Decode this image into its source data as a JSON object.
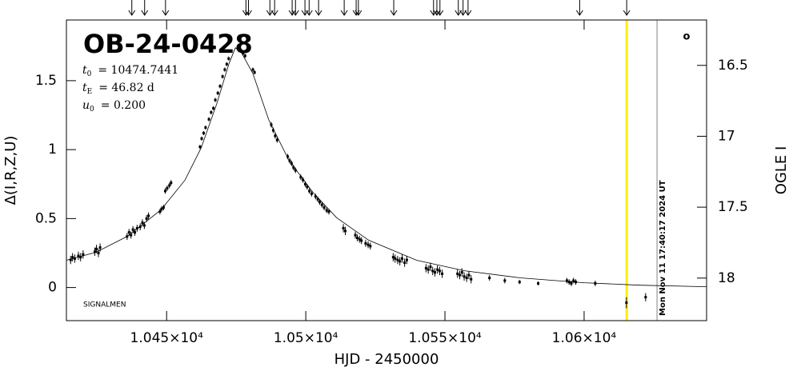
{
  "chart_data": {
    "type": "scatter",
    "title": "OB-24-0428",
    "parameters": [
      {
        "symbol": "t",
        "subscript": "0",
        "text": "= 10474.7441"
      },
      {
        "symbol": "t",
        "subscript": "E",
        "text": "= 46.82 d"
      },
      {
        "symbol": "u",
        "subscript": "0",
        "text": "= 0.200"
      }
    ],
    "annotation": "SIGNALMEN",
    "corner_mark": "o",
    "xlabel": "HJD - 2450000",
    "ylabel": "Δ(I,R,Z,U)",
    "y2label": "OGLE I",
    "xlim": [
      10414,
      10644
    ],
    "ylim": [
      -0.24,
      1.94
    ],
    "y2lim": [
      18.3,
      16.18
    ],
    "xticks": [
      {
        "value": 10450,
        "label": "1.045×10⁴"
      },
      {
        "value": 10500,
        "label": "1.05×10⁴"
      },
      {
        "value": 10550,
        "label": "1.055×10⁴"
      },
      {
        "value": 10600,
        "label": "1.06×10⁴"
      }
    ],
    "yticks": [
      0,
      0.5,
      1,
      1.5
    ],
    "y2ticks": [
      16.5,
      17,
      17.5,
      18
    ],
    "series": [
      {
        "color": "#000000",
        "x": [
          10415.5,
          10416.2,
          10417.0,
          10418.3,
          10419.1,
          10420.0,
          10424.2,
          10424.8,
          10425.5,
          10426.1,
          10435.8,
          10436.5,
          10437.2,
          10437.9,
          10438.6,
          10439.4,
          10440.5,
          10441.3,
          10442.0,
          10442.8,
          10443.5,
          10447.6,
          10448.2,
          10448.9,
          10449.5,
          10450.2,
          10451.0,
          10451.6,
          10462.0,
          10462.6,
          10463.3,
          10464.0,
          10465.2,
          10466.0,
          10466.8,
          10467.5,
          10468.4,
          10469.2,
          10470.1,
          10470.9,
          10471.6,
          10472.3,
          10476.0,
          10476.7,
          10477.5,
          10478.2,
          10481.0,
          10481.6,
          10487.6,
          10488.3,
          10489.0,
          10489.7,
          10493.5,
          10494.2,
          10494.9,
          10495.6,
          10496.3,
          10498.2,
          10499.0,
          10499.8,
          10500.5,
          10501.3,
          10502.1,
          10503.5,
          10504.3,
          10505.0,
          10505.8,
          10506.6,
          10507.5,
          10508.3,
          10513.5,
          10514.2,
          10517.8,
          10518.5,
          10519.3,
          10520.0,
          10521.5,
          10522.4,
          10523.2,
          10531.4,
          10532.1,
          10533.0,
          10533.8,
          10534.6,
          10535.5,
          10536.3,
          10543.2,
          10544.0,
          10544.8,
          10545.6,
          10546.4,
          10547.3,
          10548.1,
          10549.0,
          10554.5,
          10555.3,
          10556.1,
          10556.9,
          10557.8,
          10558.6,
          10559.4,
          10566.0,
          10571.5,
          10576.8,
          10583.5,
          10593.8,
          10594.6,
          10595.4,
          10596.2,
          10597.0,
          10604.0,
          10615.2,
          10622.1
        ],
        "values": [
          0.2,
          0.22,
          0.21,
          0.23,
          0.22,
          0.24,
          0.26,
          0.28,
          0.25,
          0.29,
          0.37,
          0.4,
          0.38,
          0.42,
          0.4,
          0.43,
          0.44,
          0.47,
          0.45,
          0.5,
          0.52,
          0.55,
          0.57,
          0.58,
          0.7,
          0.72,
          0.74,
          0.76,
          1.02,
          1.08,
          1.12,
          1.16,
          1.22,
          1.27,
          1.3,
          1.36,
          1.41,
          1.46,
          1.53,
          1.58,
          1.62,
          1.66,
          1.74,
          1.72,
          1.7,
          1.68,
          1.58,
          1.56,
          1.18,
          1.14,
          1.1,
          1.07,
          0.95,
          0.92,
          0.9,
          0.87,
          0.85,
          0.8,
          0.78,
          0.75,
          0.73,
          0.7,
          0.68,
          0.66,
          0.64,
          0.62,
          0.6,
          0.58,
          0.56,
          0.55,
          0.43,
          0.41,
          0.38,
          0.36,
          0.35,
          0.34,
          0.32,
          0.31,
          0.3,
          0.22,
          0.21,
          0.2,
          0.19,
          0.21,
          0.18,
          0.2,
          0.14,
          0.13,
          0.15,
          0.12,
          0.11,
          0.13,
          0.12,
          0.1,
          0.1,
          0.09,
          0.11,
          0.08,
          0.07,
          0.09,
          0.06,
          0.07,
          0.05,
          0.04,
          0.03,
          0.05,
          0.04,
          0.03,
          0.05,
          0.04,
          0.03,
          -0.11,
          -0.07
        ],
        "errors": [
          0.03,
          0.03,
          0.03,
          0.03,
          0.03,
          0.03,
          0.03,
          0.03,
          0.03,
          0.03,
          0.025,
          0.025,
          0.025,
          0.025,
          0.025,
          0.025,
          0.025,
          0.025,
          0.025,
          0.025,
          0.025,
          0.02,
          0.02,
          0.02,
          0.02,
          0.02,
          0.02,
          0.02,
          0.015,
          0.015,
          0.015,
          0.015,
          0.015,
          0.015,
          0.015,
          0.015,
          0.015,
          0.015,
          0.015,
          0.015,
          0.015,
          0.015,
          0.015,
          0.015,
          0.015,
          0.015,
          0.015,
          0.015,
          0.02,
          0.02,
          0.02,
          0.02,
          0.02,
          0.02,
          0.02,
          0.02,
          0.02,
          0.02,
          0.02,
          0.02,
          0.02,
          0.02,
          0.02,
          0.02,
          0.02,
          0.02,
          0.02,
          0.02,
          0.02,
          0.02,
          0.03,
          0.03,
          0.025,
          0.025,
          0.025,
          0.025,
          0.025,
          0.025,
          0.025,
          0.03,
          0.03,
          0.03,
          0.03,
          0.03,
          0.03,
          0.03,
          0.03,
          0.03,
          0.03,
          0.03,
          0.03,
          0.03,
          0.03,
          0.03,
          0.03,
          0.03,
          0.03,
          0.03,
          0.03,
          0.03,
          0.03,
          0.02,
          0.02,
          0.015,
          0.015,
          0.02,
          0.02,
          0.02,
          0.02,
          0.02,
          0.02,
          0.04,
          0.03
        ]
      }
    ],
    "model": {
      "type": "line",
      "color": "#000000",
      "x": [
        10414,
        10424.6,
        10436,
        10448,
        10456.6,
        10462.4,
        10468,
        10472.4,
        10474.7,
        10476.7,
        10481,
        10486.7,
        10493.9,
        10502.5,
        10511.1,
        10522.6,
        10539.8,
        10557,
        10577,
        10600,
        10620,
        10644
      ],
      "values": [
        0.198,
        0.256,
        0.372,
        0.564,
        0.779,
        1.012,
        1.331,
        1.622,
        1.738,
        1.71,
        1.552,
        1.215,
        0.924,
        0.692,
        0.506,
        0.343,
        0.198,
        0.122,
        0.07,
        0.035,
        0.017,
        0.006
      ]
    },
    "arrows": [
      10437.5,
      10442.1,
      10449.6,
      10478.5,
      10479.4,
      10487.1,
      10488.8,
      10495.1,
      10496.3,
      10499.7,
      10501.2,
      10504.6,
      10513.8,
      10518.1,
      10518.9,
      10531.6,
      10545.9,
      10547.1,
      10548.2,
      10554.8,
      10556.5,
      10558.3,
      10598.4,
      10615.3
    ],
    "markers": [
      {
        "x": 10615.3,
        "color": "#ffee00"
      },
      {
        "x": 10626.2,
        "color": "#999999",
        "label": "Mon Nov 11 17:40:17 2024 UT"
      }
    ]
  }
}
